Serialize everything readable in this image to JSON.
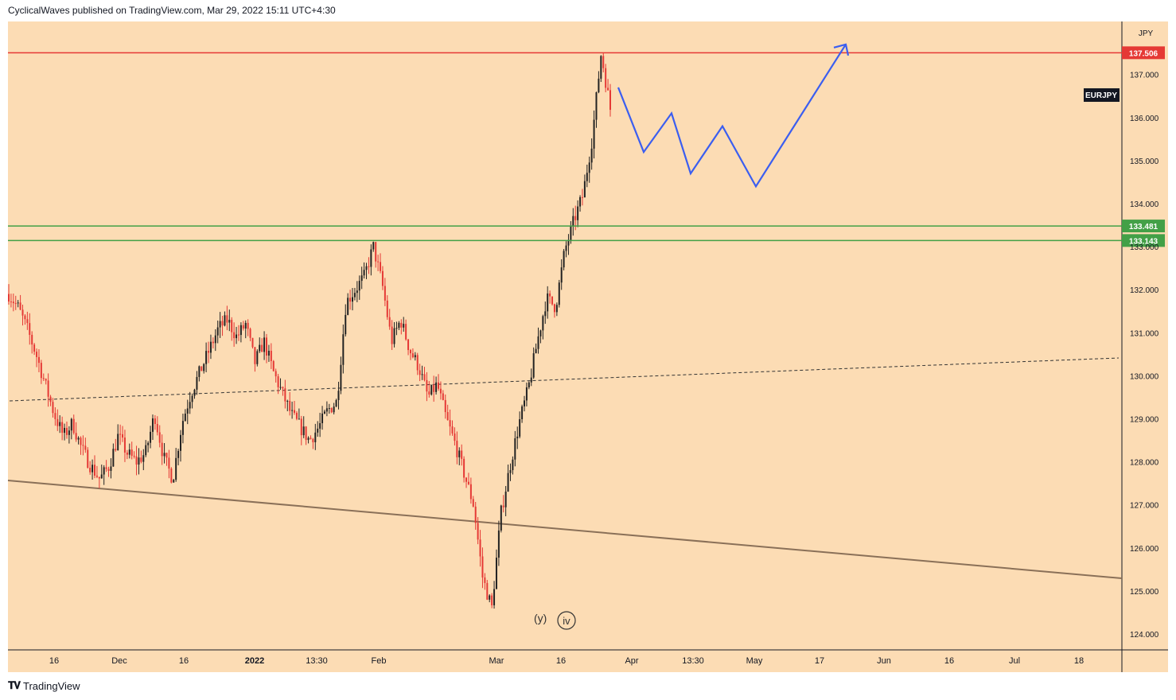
{
  "header": {
    "publisher_line": "CyclicalWaves published on TradingView.com, Mar 29, 2022 15:11 UTC+4:30"
  },
  "footer": {
    "brand": "TradingView"
  },
  "chart_data": {
    "type": "candlestick",
    "symbol": "EURJPY",
    "currency_label": "JPY",
    "background": "#fcdcb4",
    "ylim": [
      123.7,
      138.3
    ],
    "y_ticks": [
      "124.000",
      "125.000",
      "126.000",
      "127.000",
      "128.000",
      "129.000",
      "130.000",
      "131.000",
      "132.000",
      "133.000",
      "134.000",
      "135.000",
      "136.000",
      "137.000"
    ],
    "x_ticks": [
      "16",
      "Dec",
      "16",
      "2022",
      "13:30",
      "Feb",
      "Mar",
      "16",
      "Apr",
      "13:30",
      "May",
      "17",
      "Jun",
      "16",
      "Jul",
      "18"
    ],
    "x_tick_bold": "2022",
    "price_path": [
      131.9,
      131.6,
      131.1,
      130.5,
      129.8,
      129.1,
      128.6,
      128.9,
      128.3,
      127.9,
      127.6,
      127.9,
      128.6,
      128.2,
      128.0,
      128.2,
      129.1,
      128.1,
      127.6,
      128.9,
      129.6,
      130.1,
      130.6,
      131.1,
      131.3,
      130.9,
      131.2,
      130.3,
      130.8,
      130.1,
      129.6,
      129.1,
      128.8,
      128.5,
      128.8,
      129.2,
      129.4,
      131.7,
      132.0,
      132.3,
      133.0,
      132.1,
      130.8,
      131.3,
      130.6,
      130.2,
      129.5,
      129.8,
      129.0,
      128.4,
      127.7,
      127.0,
      125.3,
      124.6,
      126.8,
      127.9,
      128.9,
      129.7,
      130.8,
      131.8,
      131.6,
      132.9,
      133.6,
      134.2,
      135.5,
      137.5,
      136.2
    ],
    "horizontal_levels": [
      {
        "value": 137.506,
        "label": "137.506",
        "color": "#e53935"
      },
      {
        "value": 133.481,
        "label": "133.481",
        "color": "#43a047"
      },
      {
        "value": 133.143,
        "label": "133.143",
        "color": "#43a047"
      }
    ],
    "projection": {
      "color": "#3b5ef0",
      "points": [
        [
          0,
          136.7
        ],
        [
          1,
          135.2
        ],
        [
          2,
          136.1
        ],
        [
          3,
          134.7
        ],
        [
          4,
          135.8
        ],
        [
          5,
          134.4
        ],
        [
          6,
          137.7
        ]
      ]
    },
    "annotations": [
      {
        "text": "(y)",
        "circled": false
      },
      {
        "text": "iv",
        "circled": true
      }
    ]
  }
}
